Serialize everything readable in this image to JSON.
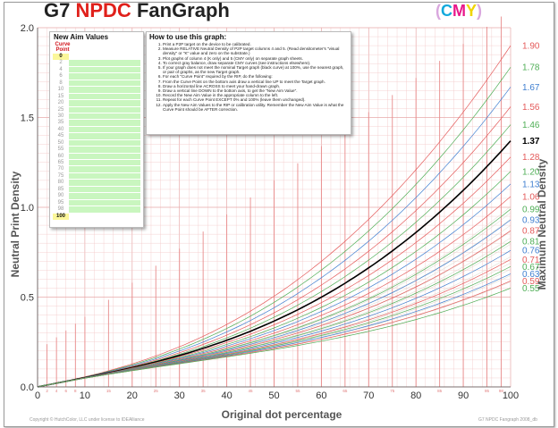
{
  "header": {
    "title_g7": "G7",
    "title_npdc": "NPDC",
    "title_fangraph": "FanGraph",
    "cmy_open": "(",
    "cmy_c": "C",
    "cmy_m": "M",
    "cmy_y": "Y",
    "cmy_close": ")"
  },
  "colors": {
    "red_curve": "#e45a5a",
    "green_curve": "#4fae56",
    "blue_curve": "#3f7fd0",
    "target_curve": "#000000",
    "grid": "#f2c7c7",
    "ramp_fan": "#d9d6c9"
  },
  "aim_table": {
    "title": "New Aim Values",
    "curve_point_label": "Curve Point",
    "points": [
      "0",
      "2",
      "4",
      "6",
      "8",
      "10",
      "15",
      "20",
      "25",
      "30",
      "35",
      "40",
      "45",
      "50",
      "55",
      "60",
      "65",
      "70",
      "75",
      "80",
      "85",
      "90",
      "95",
      "98",
      "100"
    ]
  },
  "howto": {
    "title": "How to use this graph:",
    "steps": [
      "Print a P2P target on the device to be calibrated.",
      "Measure RELATIVE Neutral Density of P2P target columns 4 and 5. (Read densitometer's \"visual density\" or \"K\" value and zero on the substrate.)",
      "Plot graphs of column 4 (K only) and 5 (CMY only) on separate graph sheets.",
      "To correct gray balance, draw separate CMY curves (see instructions elsewhere).",
      "If your graph does not meet the nominal Target graph (black curve) at 100%, use the nearest graph, or pair of graphs, as the new Target graph.",
      "For each \"Curve Point\" required by the RIP, do the following:",
      "From the Curve Point on the bottom axis draw a vertical line UP to meet the Target graph.",
      "Draw a horizontal line ACROSS to meet your hand-drawn graph.",
      "Draw a vertical line DOWN to the bottom axis, to get the \"New Aim Value\".",
      "Record the New Aim Value in the appropriate column to the left.",
      "Repeat for each Curve Point EXCEPT 0% and 100% (leave them unchanged).",
      "Apply the New Aim Values to the RIP or calibration utility. Remember the New Aim Value is what the Curve Point should be AFTER correction."
    ]
  },
  "footer": {
    "left": "Copyright © HutchColor, LLC under license to IDEAlliance",
    "right": "G7 NPDC Fangraph 2008_db"
  },
  "chart_data": {
    "type": "line",
    "title": "G7 NPDC FanGraph (CMY)",
    "xlabel": "Original dot percentage",
    "ylabel": "Neutral Print Density",
    "y2label": "Maximum Neutral Density",
    "xlim": [
      0,
      100
    ],
    "ylim": [
      0,
      2.0
    ],
    "x_ticks": [
      "0",
      "10",
      "20",
      "30",
      "40",
      "50",
      "60",
      "70",
      "80",
      "90",
      "100"
    ],
    "y_ticks": [
      "0.0",
      "0.5",
      "1.0",
      "1.5",
      "2.0"
    ],
    "x_minor_labels": [
      "2",
      "4",
      "6",
      "8",
      "15",
      "25",
      "35",
      "45",
      "55",
      "65",
      "75",
      "85",
      "95",
      "98"
    ],
    "grid": true,
    "curve_model": "NPDC curves are G7 neutral print density curves ending at each maximum density; target curve ends at 1.37",
    "target_max_density": 1.37,
    "series": [
      {
        "name": "1.90",
        "max_density": 1.9,
        "color": "red"
      },
      {
        "name": "1.78",
        "max_density": 1.78,
        "color": "green"
      },
      {
        "name": "1.67",
        "max_density": 1.67,
        "color": "blue"
      },
      {
        "name": "1.56",
        "max_density": 1.56,
        "color": "red"
      },
      {
        "name": "1.46",
        "max_density": 1.46,
        "color": "green"
      },
      {
        "name": "1.37",
        "max_density": 1.37,
        "color": "black"
      },
      {
        "name": "1.28",
        "max_density": 1.28,
        "color": "red"
      },
      {
        "name": "1.20",
        "max_density": 1.2,
        "color": "green"
      },
      {
        "name": "1.13",
        "max_density": 1.13,
        "color": "blue"
      },
      {
        "name": "1.06",
        "max_density": 1.06,
        "color": "red"
      },
      {
        "name": "0.99",
        "max_density": 0.99,
        "color": "green"
      },
      {
        "name": "0.93",
        "max_density": 0.93,
        "color": "blue"
      },
      {
        "name": "0.87",
        "max_density": 0.87,
        "color": "red"
      },
      {
        "name": "0.81",
        "max_density": 0.81,
        "color": "green"
      },
      {
        "name": "0.76",
        "max_density": 0.76,
        "color": "blue"
      },
      {
        "name": "0.71",
        "max_density": 0.71,
        "color": "red"
      },
      {
        "name": "0.67",
        "max_density": 0.67,
        "color": "green"
      },
      {
        "name": "0.63",
        "max_density": 0.63,
        "color": "blue"
      },
      {
        "name": "0.59",
        "max_density": 0.59,
        "color": "red"
      },
      {
        "name": "0.55",
        "max_density": 0.55,
        "color": "green"
      }
    ]
  }
}
